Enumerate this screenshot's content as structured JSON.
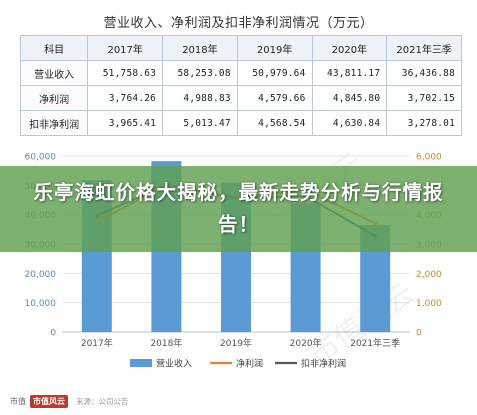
{
  "table": {
    "title": "营业收入、净利润及扣非净利润情况（万元）",
    "headers": [
      "科目",
      "2017年",
      "2018年",
      "2019年",
      "2020年",
      "2021年三季"
    ],
    "rows": [
      {
        "label": "营业收入",
        "values": [
          "51,758.63",
          "58,253.08",
          "50,979.64",
          "43,811.17",
          "36,436.88"
        ]
      },
      {
        "label": "净利润",
        "values": [
          "3,764.26",
          "4,988.83",
          "4,579.66",
          "4,845.80",
          "3,702.15"
        ]
      },
      {
        "label": "扣非净利润",
        "values": [
          "3,965.41",
          "5,013.47",
          "4,568.54",
          "4,630.84",
          "3,278.01"
        ]
      }
    ]
  },
  "chart_data": {
    "type": "bar",
    "categories": [
      "2017年",
      "2018年",
      "2019年",
      "2020年",
      "2021年三季"
    ],
    "series": [
      {
        "name": "营业收入",
        "type": "bar",
        "axis": "left",
        "values": [
          51758.63,
          58253.08,
          50979.64,
          43811.17,
          36436.88
        ]
      },
      {
        "name": "净利润",
        "type": "line",
        "axis": "right",
        "values": [
          3764.26,
          4988.83,
          4579.66,
          4845.8,
          3702.15
        ]
      },
      {
        "name": "扣非净利润",
        "type": "line",
        "axis": "right",
        "values": [
          3965.41,
          5013.47,
          4568.54,
          4630.84,
          3278.01
        ]
      }
    ],
    "y_left": {
      "ticks": [
        "0",
        "10,000",
        "20,000",
        "30,000",
        "40,000",
        "50,000",
        "60,000"
      ],
      "ylim": [
        0,
        60000
      ]
    },
    "y_right": {
      "ticks": [
        "0",
        "1,000",
        "2,000",
        "3,000",
        "4,000",
        "5,000",
        "6,000"
      ],
      "ylim": [
        0,
        6000
      ]
    },
    "legend_position": "bottom",
    "grid": true
  },
  "colors": {
    "bar": "#5b9bd5",
    "net_profit_line": "#ed7d31",
    "deducted_line": "#4a5a6a",
    "banner": "#60a050"
  },
  "banner": {
    "text": "乐亭海虹价格大揭秘，最新走势分析与行情报告！"
  },
  "footer": {
    "logo": "市值风云",
    "brand": "市值",
    "note": "来源：公司公告"
  }
}
